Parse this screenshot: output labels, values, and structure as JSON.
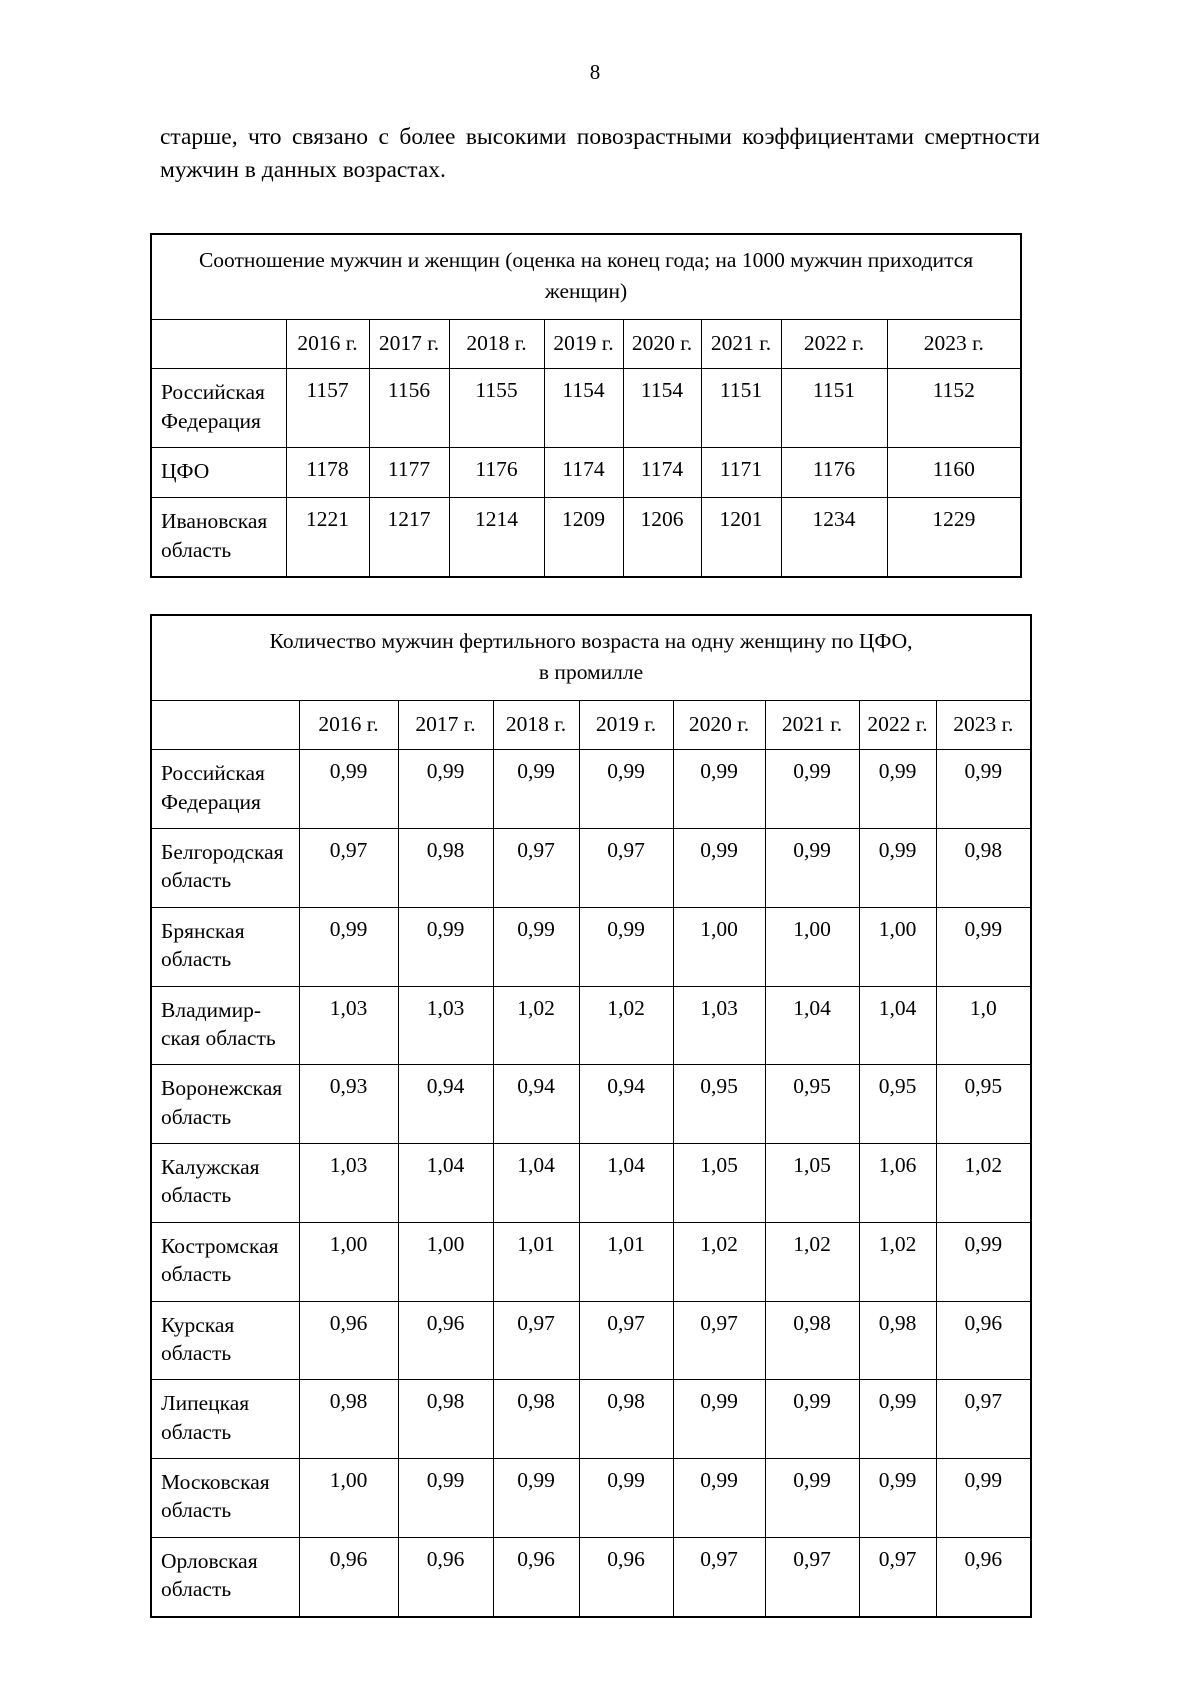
{
  "page": {
    "number": "8",
    "paragraph": "старше, что связано с более высокими повозрастными коэффициентами смертности мужчин в данных возрастах."
  },
  "table1": {
    "title": "Соотношение мужчин и женщин (оценка на конец года; на 1000 мужчин приходится\nженщин)",
    "columns": [
      "2016 г.",
      "2017 г.",
      "2018 г.",
      "2019 г.",
      "2020 г.",
      "2021 г.",
      "2022 г.",
      "2023 г."
    ],
    "rows": [
      {
        "label": "Российская\nФедерация",
        "values": [
          "1157",
          "1156",
          "1155",
          "1154",
          "1154",
          "1151",
          "1151",
          "1152"
        ]
      },
      {
        "label": "ЦФО",
        "values": [
          "1178",
          "1177",
          "1176",
          "1174",
          "1174",
          "1171",
          "1176",
          "1160"
        ]
      },
      {
        "label": "Ивановская\nобласть",
        "values": [
          "1221",
          "1217",
          "1214",
          "1209",
          "1206",
          "1201",
          "1234",
          "1229"
        ]
      }
    ]
  },
  "table2": {
    "title": "Количество мужчин фертильного возраста на одну женщину по ЦФО,\nв промилле",
    "columns": [
      "2016 г.",
      "2017 г.",
      "2018 г.",
      "2019 г.",
      "2020 г.",
      "2021 г.",
      "2022 г.",
      "2023 г."
    ],
    "rows": [
      {
        "label": "Российская\nФедерация",
        "values": [
          "0,99",
          "0,99",
          "0,99",
          "0,99",
          "0,99",
          "0,99",
          "0,99",
          "0,99"
        ]
      },
      {
        "label": "Белгородская\nобласть",
        "values": [
          "0,97",
          "0,98",
          "0,97",
          "0,97",
          "0,99",
          "0,99",
          "0,99",
          "0,98"
        ]
      },
      {
        "label": "Брянская\nобласть",
        "values": [
          "0,99",
          "0,99",
          "0,99",
          "0,99",
          "1,00",
          "1,00",
          "1,00",
          "0,99"
        ]
      },
      {
        "label": "Владимир-\nская область",
        "values": [
          "1,03",
          "1,03",
          "1,02",
          "1,02",
          "1,03",
          "1,04",
          "1,04",
          "1,0"
        ]
      },
      {
        "label": "Воронежская\nобласть",
        "values": [
          "0,93",
          "0,94",
          "0,94",
          "0,94",
          "0,95",
          "0,95",
          "0,95",
          "0,95"
        ]
      },
      {
        "label": "Калужская\nобласть",
        "values": [
          "1,03",
          "1,04",
          "1,04",
          "1,04",
          "1,05",
          "1,05",
          "1,06",
          "1,02"
        ]
      },
      {
        "label": "Костромская\nобласть",
        "values": [
          "1,00",
          "1,00",
          "1,01",
          "1,01",
          "1,02",
          "1,02",
          "1,02",
          "0,99"
        ]
      },
      {
        "label": "Курская\nобласть",
        "values": [
          "0,96",
          "0,96",
          "0,97",
          "0,97",
          "0,97",
          "0,98",
          "0,98",
          "0,96"
        ]
      },
      {
        "label": "Липецкая\nобласть",
        "values": [
          "0,98",
          "0,98",
          "0,98",
          "0,98",
          "0,99",
          "0,99",
          "0,99",
          "0,97"
        ]
      },
      {
        "label": "Московская\nобласть",
        "values": [
          "1,00",
          "0,99",
          "0,99",
          "0,99",
          "0,99",
          "0,99",
          "0,99",
          "0,99"
        ]
      },
      {
        "label": "Орловская\nобласть",
        "values": [
          "0,96",
          "0,96",
          "0,96",
          "0,96",
          "0,97",
          "0,97",
          "0,97",
          "0,96"
        ]
      }
    ]
  }
}
